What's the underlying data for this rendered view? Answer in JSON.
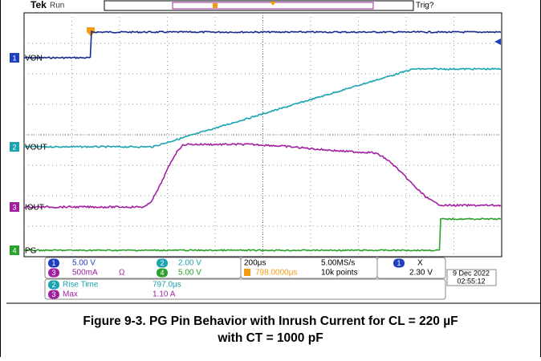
{
  "header": {
    "brand": "Tek",
    "status": "Run",
    "trigger_status": "Trig?"
  },
  "channels": [
    {
      "number": "1",
      "label": "VON"
    },
    {
      "number": "2",
      "label": "VOUT"
    },
    {
      "number": "3",
      "label": "IOUT"
    },
    {
      "number": "4",
      "label": "PG"
    }
  ],
  "readouts": {
    "ch1": {
      "number": "1",
      "scale": "5.00 V"
    },
    "ch2": {
      "number": "2",
      "scale": "2.00 V"
    },
    "ch3": {
      "number": "3",
      "scale": "500mA",
      "unit_symbol": "Ω"
    },
    "ch4": {
      "number": "4",
      "scale": "5.00 V"
    },
    "timebase": {
      "scale": "200μs",
      "sample_rate": "5.00MS/s",
      "delay": "798.0000μs",
      "record_length": "10k points"
    },
    "trigger": {
      "source": "1",
      "slope": "X",
      "level": "2.30 V"
    },
    "date": "9 Dec  2022",
    "time": "02:55:12"
  },
  "measurements": [
    {
      "source": "2",
      "name": "Rise Time",
      "value": "797.0μs"
    },
    {
      "source": "3",
      "name": "Max",
      "value": "1.10 A"
    }
  ],
  "caption": {
    "line1": "Figure 9-3. PG Pin Behavior with Inrush Current for CL = 220 µF",
    "line2": "with CT = 1000 pF"
  }
}
